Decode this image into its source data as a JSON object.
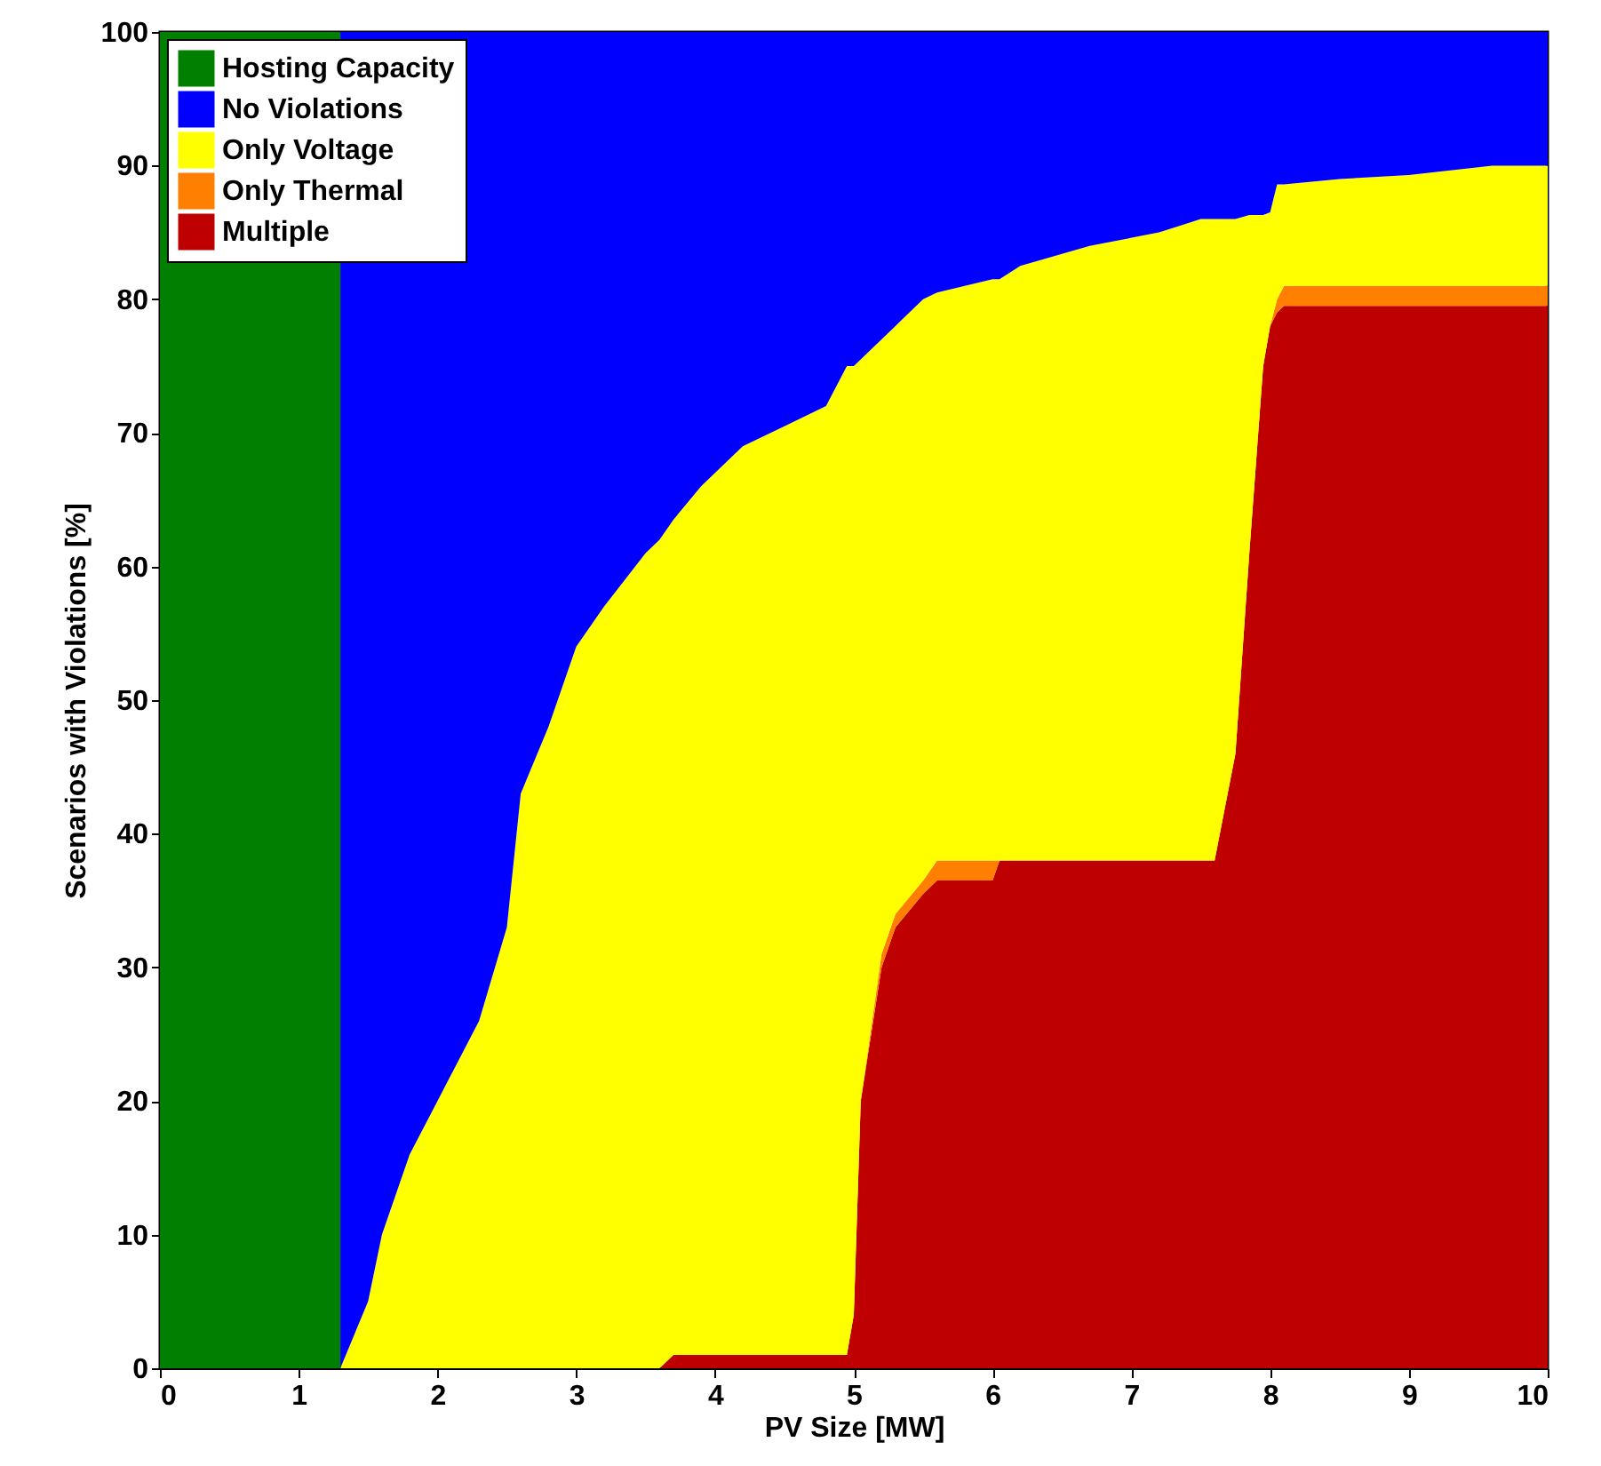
{
  "chart_data": {
    "type": "area",
    "stacked": true,
    "xlabel": "PV Size [MW]",
    "ylabel": "Scenarios with Violations [%]",
    "x": [
      0,
      1.3,
      1.3,
      1.5,
      1.6,
      1.8,
      2.0,
      2.3,
      2.5,
      2.6,
      2.8,
      3.0,
      3.2,
      3.5,
      3.6,
      3.7,
      3.9,
      4.2,
      4.5,
      4.8,
      4.9,
      4.95,
      5.0,
      5.05,
      5.2,
      5.3,
      5.5,
      5.6,
      5.8,
      6.0,
      6.05,
      6.2,
      6.7,
      7.2,
      7.5,
      7.6,
      7.75,
      7.85,
      7.95,
      8.0,
      8.05,
      8.1,
      8.2,
      8.5,
      9.0,
      9.6,
      10
    ],
    "series": [
      {
        "name": "Multiple",
        "color": "#bf0000",
        "values": [
          0,
          0,
          0,
          0,
          0,
          0,
          0,
          0,
          0,
          0,
          0,
          0,
          0,
          0,
          0,
          1,
          1,
          1,
          1,
          1,
          1,
          1,
          4,
          20,
          30,
          33,
          35.5,
          36.5,
          36.5,
          36.5,
          38,
          38,
          38,
          38,
          38,
          38,
          46,
          61,
          75,
          78,
          79,
          79.5,
          79.5,
          79.5,
          79.5,
          79.5,
          79.5
        ]
      },
      {
        "name": "Only Thermal",
        "color": "#ff8000",
        "values": [
          0,
          0,
          0,
          0,
          0,
          0,
          0,
          0,
          0,
          0,
          0,
          0,
          0,
          0,
          0,
          0,
          0,
          0,
          0,
          0,
          0,
          0,
          0,
          0,
          1,
          1,
          1,
          1.5,
          1.5,
          1.5,
          0,
          0,
          0,
          0,
          0,
          0,
          0,
          0,
          0,
          0,
          1,
          1.5,
          1.5,
          1.5,
          1.5,
          1.5,
          1.5
        ]
      },
      {
        "name": "Only Voltage",
        "color": "#ffff00",
        "values": [
          0,
          0,
          0,
          5,
          10,
          16,
          20,
          26,
          33,
          43,
          48,
          54,
          57,
          61,
          62,
          62.5,
          65,
          68,
          69.5,
          71,
          73,
          74,
          71,
          55.5,
          46,
          44,
          43.5,
          42.5,
          43,
          43.5,
          43.5,
          44.5,
          46,
          47,
          48,
          48,
          40,
          25.3,
          11.3,
          8.5,
          8.6,
          7.6,
          7.7,
          8,
          8.3,
          9,
          9
        ]
      },
      {
        "name": "No Violations",
        "color": "#0000ff",
        "values": [
          null,
          null,
          100,
          95,
          90,
          84,
          80,
          74,
          67,
          57,
          52,
          46,
          43,
          39,
          38,
          36.5,
          34,
          31,
          29.5,
          28,
          26,
          25,
          25,
          24.5,
          23,
          22,
          20,
          19.5,
          19,
          18.5,
          18.5,
          17.5,
          16,
          15,
          14,
          14,
          14,
          13.7,
          13.7,
          13.5,
          11.4,
          11.4,
          11.3,
          11,
          10.7,
          10,
          10
        ]
      },
      {
        "name": "Hosting Capacity",
        "color": "#007f00",
        "values": [
          100,
          100,
          null,
          null,
          null,
          null,
          null,
          null,
          null,
          null,
          null,
          null,
          null,
          null,
          null,
          null,
          null,
          null,
          null,
          null,
          null,
          null,
          null,
          null,
          null,
          null,
          null,
          null,
          null,
          null,
          null,
          null,
          null,
          null,
          null,
          null,
          null,
          null,
          null,
          null,
          null,
          null,
          null,
          null,
          null,
          null,
          null
        ]
      }
    ],
    "xlim": [
      0,
      10
    ],
    "xticks": [
      0,
      1,
      2,
      3,
      4,
      5,
      6,
      7,
      8,
      9,
      10
    ],
    "ylim": [
      0,
      100
    ],
    "yticks": [
      0,
      10,
      20,
      30,
      40,
      50,
      60,
      70,
      80,
      90,
      100
    ],
    "legend": "top left",
    "grid": false
  }
}
